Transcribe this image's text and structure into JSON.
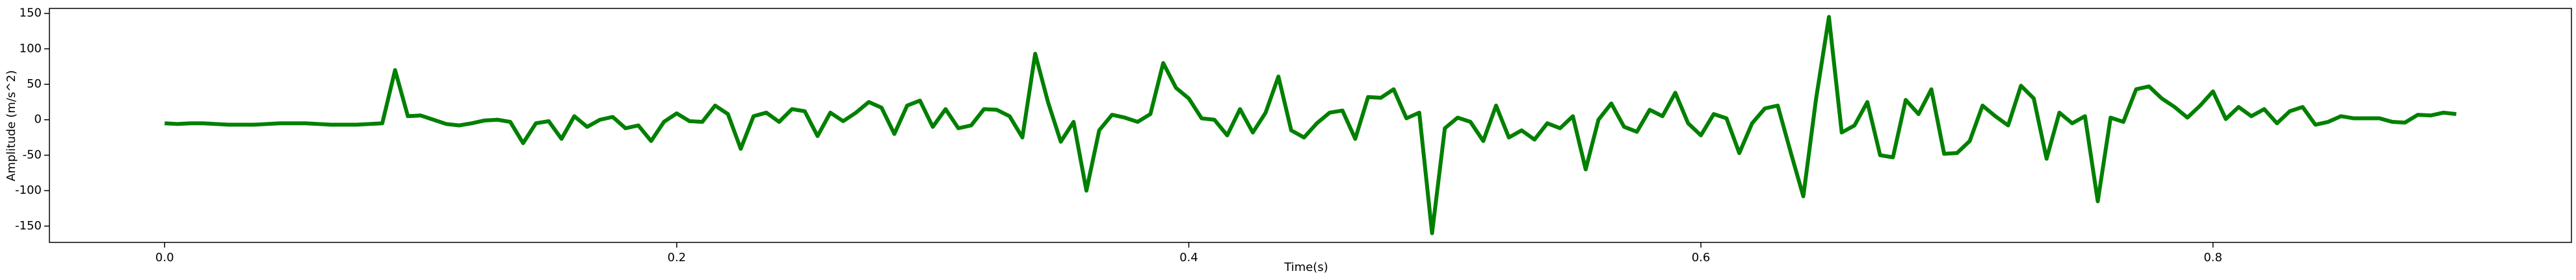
{
  "chart_data": {
    "type": "line",
    "xlabel": "Time(s)",
    "ylabel": "Amplitude (m/s^2)",
    "x": [
      0,
      0.005,
      0.01,
      0.015,
      0.02,
      0.025,
      0.03,
      0.035,
      0.04,
      0.045,
      0.05,
      0.055,
      0.06,
      0.065,
      0.07,
      0.075,
      0.08,
      0.085,
      0.09,
      0.095,
      0.1,
      0.105,
      0.11,
      0.115,
      0.12,
      0.125,
      0.13,
      0.135,
      0.14,
      0.145,
      0.15,
      0.155,
      0.16,
      0.165,
      0.17,
      0.175,
      0.18,
      0.185,
      0.19,
      0.195,
      0.2,
      0.205,
      0.21,
      0.215,
      0.22,
      0.225,
      0.23,
      0.235,
      0.24,
      0.245,
      0.25,
      0.255,
      0.26,
      0.265,
      0.27,
      0.275,
      0.28,
      0.285,
      0.29,
      0.295,
      0.3,
      0.305,
      0.31,
      0.315,
      0.32,
      0.325,
      0.33,
      0.335,
      0.34,
      0.345,
      0.35,
      0.355,
      0.36,
      0.365,
      0.37,
      0.375,
      0.38,
      0.385,
      0.39,
      0.395,
      0.4,
      0.405,
      0.41,
      0.415,
      0.42,
      0.425,
      0.43,
      0.435,
      0.44,
      0.445,
      0.45,
      0.455,
      0.46,
      0.465,
      0.47,
      0.475,
      0.48,
      0.485,
      0.49,
      0.495,
      0.5,
      0.505,
      0.51,
      0.515,
      0.52,
      0.525,
      0.53,
      0.535,
      0.54,
      0.545,
      0.55,
      0.555,
      0.56,
      0.565,
      0.57,
      0.575,
      0.58,
      0.585,
      0.59,
      0.595,
      0.6,
      0.605,
      0.61,
      0.615,
      0.62,
      0.625,
      0.63,
      0.635,
      0.64,
      0.645,
      0.65,
      0.655,
      0.66,
      0.665,
      0.67,
      0.675,
      0.68,
      0.685,
      0.69,
      0.695,
      0.7,
      0.705,
      0.71,
      0.715,
      0.72,
      0.725,
      0.73,
      0.735,
      0.74,
      0.745,
      0.75,
      0.755,
      0.76,
      0.765,
      0.77,
      0.775,
      0.78,
      0.785,
      0.79,
      0.795,
      0.8,
      0.805,
      0.81,
      0.815,
      0.82,
      0.825,
      0.83,
      0.835,
      0.84,
      0.845,
      0.85,
      0.855,
      0.86,
      0.865,
      0.87,
      0.875,
      0.88,
      0.885,
      0.89,
      0.895
    ],
    "series": [
      {
        "color": "#008000",
        "values": [
          -5,
          -6,
          -5,
          -5,
          -6,
          -7,
          -7,
          -7,
          -6,
          -5,
          -5,
          -5,
          -6,
          -7,
          -7,
          -7,
          -6,
          -5,
          70,
          5,
          6,
          0,
          -6,
          -8,
          -5,
          -1,
          0,
          -3,
          -33,
          -5,
          -2,
          -27,
          5,
          -10,
          0,
          4,
          -12,
          -8,
          -30,
          -3,
          9,
          -2,
          -3,
          20,
          8,
          -41,
          5,
          10,
          -3,
          15,
          12,
          -23,
          10,
          -2,
          10,
          25,
          17,
          -20,
          20,
          27,
          -10,
          15,
          -12,
          -8,
          15,
          14,
          5,
          -25,
          93,
          25,
          -31,
          -3,
          -100,
          -15,
          7,
          3,
          -3,
          8,
          80,
          45,
          30,
          2,
          0,
          -22,
          15,
          -18,
          10,
          61,
          -15,
          -25,
          -5,
          10,
          13,
          -27,
          32,
          31,
          43,
          2,
          10,
          -160,
          -12,
          3,
          -3,
          -30,
          20,
          -25,
          -15,
          -28,
          -5,
          -12,
          5,
          -70,
          0,
          23,
          -10,
          -17,
          14,
          5,
          38,
          -5,
          -22,
          8,
          2,
          -47,
          -5,
          16,
          20,
          -45,
          -108,
          30,
          145,
          -18,
          -8,
          25,
          -50,
          -53,
          28,
          8,
          43,
          -48,
          -47,
          -30,
          20,
          5,
          -8,
          48,
          30,
          -55,
          10,
          -5,
          5,
          -115,
          3,
          -3,
          43,
          47,
          30,
          18,
          3,
          20,
          40,
          1,
          18,
          5,
          15,
          -5,
          12,
          18,
          -7,
          -3,
          5,
          2,
          2,
          2,
          -3,
          -4,
          7,
          6,
          10,
          8
        ]
      }
    ],
    "xlim": [
      -0.045,
      0.94
    ],
    "ylim": [
      -173,
      157
    ],
    "xticks": [
      {
        "value": 0,
        "label": "0.0"
      },
      0.2,
      0.4,
      0.6,
      0.8
    ],
    "yticks": [
      -150,
      -100,
      -50,
      0,
      50,
      100,
      150
    ],
    "grid": false
  }
}
